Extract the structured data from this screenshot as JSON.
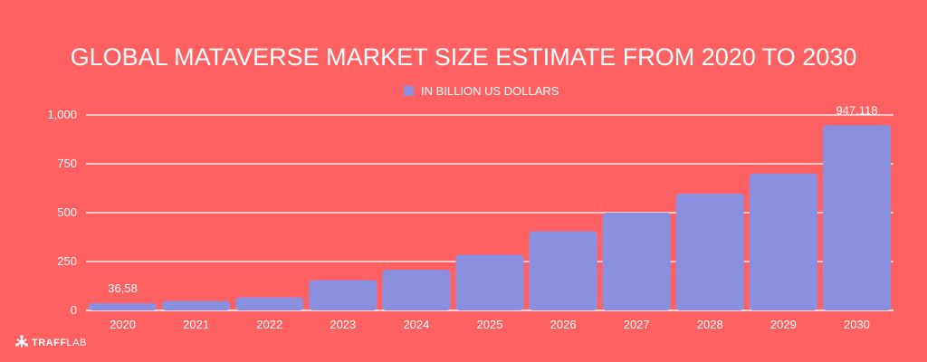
{
  "chart_data": {
    "type": "bar",
    "title": "GLOBAL MATAVERSE MARKET SIZE ESTIMATE FROM 2020 TO 2030",
    "xlabel": "",
    "ylabel": "",
    "categories": [
      "2020",
      "2021",
      "2022",
      "2023",
      "2024",
      "2025",
      "2026",
      "2027",
      "2028",
      "2029",
      "2030"
    ],
    "series": [
      {
        "name": "IN BILLION US DOLLARS",
        "values": [
          36.58,
          48,
          67,
          155,
          208,
          285,
          405,
          500,
          598,
          700,
          947.118
        ]
      }
    ],
    "data_labels": [
      {
        "category": "2020",
        "text": "36,58"
      },
      {
        "category": "2030",
        "text": "947,118"
      }
    ],
    "ylim": [
      0,
      1000
    ],
    "yticks": [
      0,
      250,
      500,
      750,
      1000
    ],
    "ytick_labels": [
      "0",
      "250",
      "500",
      "750",
      "1,000"
    ],
    "grid": true,
    "legend_position": "top-center",
    "colors": {
      "background": "#ff6163",
      "bar": "#8a8fe0",
      "text": "#ffffff",
      "grid": "#ffffff"
    }
  },
  "brand": {
    "name_bold": "TRAFF",
    "name_regular": "LAB",
    "icon": "asterisk-logo-icon"
  }
}
